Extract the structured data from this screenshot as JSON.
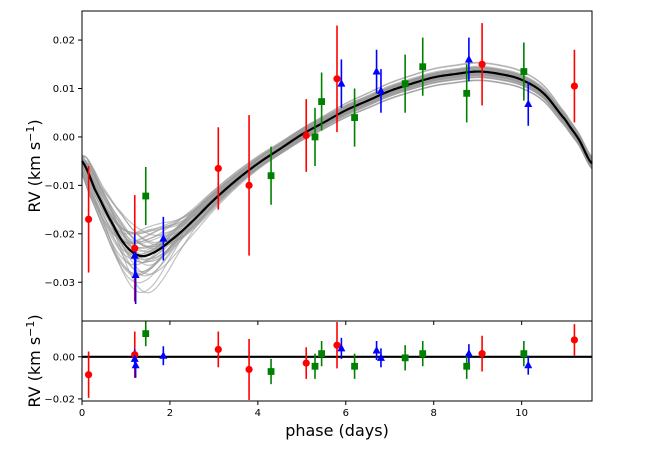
{
  "chart_data": {
    "type": "scatter",
    "x_axis": {
      "label": "phase (days)",
      "ticks": [
        "0",
        "2",
        "4",
        "6",
        "8",
        "10"
      ],
      "tick_values": [
        0,
        2,
        4,
        6,
        8,
        10
      ],
      "range": [
        0,
        11.6
      ]
    },
    "top_panel": {
      "ylabel_main": "RV (km s",
      "ylabel_sup": "−1",
      "ylabel_end": ")",
      "ylim": [
        -0.038,
        0.026
      ],
      "yticks": [
        "0.02",
        "0.01",
        "0.00",
        "−0.01",
        "−0.02",
        "−0.03"
      ],
      "ytick_values": [
        0.02,
        0.01,
        0.0,
        -0.01,
        -0.02,
        -0.03
      ],
      "model": {
        "color": "#000000",
        "points": [
          [
            0,
            -0.005
          ],
          [
            0.3,
            -0.011
          ],
          [
            0.7,
            -0.018
          ],
          [
            1.0,
            -0.0225
          ],
          [
            1.3,
            -0.0245
          ],
          [
            1.6,
            -0.024
          ],
          [
            2.0,
            -0.0215
          ],
          [
            2.5,
            -0.0175
          ],
          [
            3.0,
            -0.013
          ],
          [
            3.5,
            -0.009
          ],
          [
            4.0,
            -0.0055
          ],
          [
            4.5,
            -0.0025
          ],
          [
            5.0,
            0.0005
          ],
          [
            5.5,
            0.003
          ],
          [
            6.0,
            0.0055
          ],
          [
            6.5,
            0.0075
          ],
          [
            7.0,
            0.0095
          ],
          [
            7.5,
            0.011
          ],
          [
            8.0,
            0.0123
          ],
          [
            8.5,
            0.013
          ],
          [
            9.0,
            0.0135
          ],
          [
            9.5,
            0.013
          ],
          [
            10.0,
            0.0118
          ],
          [
            10.5,
            0.009
          ],
          [
            11.0,
            0.0035
          ],
          [
            11.3,
            -0.0005
          ],
          [
            11.6,
            -0.0055
          ]
        ]
      },
      "posterior_samples": {
        "color": "#999999",
        "description_count": 40
      },
      "series": [
        {
          "name": "red",
          "marker": "circle",
          "color": "#ff0000",
          "points": [
            [
              0.15,
              -0.017,
              0.011
            ],
            [
              1.2,
              -0.023,
              0.011
            ],
            [
              3.1,
              -0.0065,
              0.0085
            ],
            [
              3.8,
              -0.01,
              0.0145
            ],
            [
              5.1,
              0.0003,
              0.0075
            ],
            [
              5.8,
              0.012,
              0.011
            ],
            [
              9.1,
              0.015,
              0.0085
            ],
            [
              11.2,
              0.0105,
              0.0075
            ]
          ]
        },
        {
          "name": "green",
          "marker": "square",
          "color": "#008000",
          "points": [
            [
              1.45,
              -0.0122,
              0.006
            ],
            [
              4.3,
              -0.008,
              0.006
            ],
            [
              5.3,
              0.0,
              0.006
            ],
            [
              5.45,
              0.0073,
              0.006
            ],
            [
              6.2,
              0.004,
              0.006
            ],
            [
              7.35,
              0.011,
              0.006
            ],
            [
              7.75,
              0.0145,
              0.006
            ],
            [
              8.75,
              0.009,
              0.006
            ],
            [
              10.05,
              0.0135,
              0.006
            ]
          ]
        },
        {
          "name": "blue",
          "marker": "triangle",
          "color": "#0000ff",
          "points": [
            [
              1.2,
              -0.0245,
              0.0045
            ],
            [
              1.22,
              -0.0285,
              0.006
            ],
            [
              1.85,
              -0.021,
              0.0045
            ],
            [
              5.9,
              0.011,
              0.005
            ],
            [
              6.7,
              0.0135,
              0.0045
            ],
            [
              6.8,
              0.0095,
              0.0045
            ],
            [
              8.8,
              0.016,
              0.0045
            ],
            [
              10.15,
              0.0068,
              0.0045
            ]
          ]
        }
      ]
    },
    "bottom_panel": {
      "ylabel_main": "RV (km s",
      "ylabel_sup": "−1",
      "ylabel_end": ")",
      "ylim": [
        -0.021,
        0.017
      ],
      "yticks": [
        "0.00",
        "−0.02"
      ],
      "ytick_values": [
        0.0,
        -0.02
      ],
      "zero_line": 0.0,
      "series": [
        {
          "name": "red",
          "marker": "circle",
          "color": "#ff0000",
          "points": [
            [
              0.15,
              -0.0085,
              0.011
            ],
            [
              1.2,
              0.001,
              0.011
            ],
            [
              3.1,
              0.0035,
              0.0085
            ],
            [
              3.8,
              -0.006,
              0.0145
            ],
            [
              5.1,
              -0.003,
              0.0075
            ],
            [
              5.8,
              0.0055,
              0.011
            ],
            [
              9.1,
              0.0015,
              0.0085
            ],
            [
              11.2,
              0.008,
              0.0075
            ]
          ]
        },
        {
          "name": "green",
          "marker": "square",
          "color": "#008000",
          "points": [
            [
              1.45,
              0.011,
              0.006
            ],
            [
              4.3,
              -0.007,
              0.006
            ],
            [
              5.3,
              -0.0045,
              0.006
            ],
            [
              5.45,
              0.0015,
              0.006
            ],
            [
              6.2,
              -0.0045,
              0.006
            ],
            [
              7.35,
              -0.0005,
              0.006
            ],
            [
              7.75,
              0.0015,
              0.006
            ],
            [
              8.75,
              -0.0045,
              0.006
            ],
            [
              10.05,
              0.0015,
              0.006
            ]
          ]
        },
        {
          "name": "blue",
          "marker": "triangle",
          "color": "#0000ff",
          "points": [
            [
              1.2,
              -0.001,
              0.0045
            ],
            [
              1.22,
              -0.004,
              0.006
            ],
            [
              1.85,
              0.0005,
              0.0045
            ],
            [
              5.9,
              0.004,
              0.005
            ],
            [
              6.7,
              0.003,
              0.0045
            ],
            [
              6.8,
              -0.0005,
              0.0045
            ],
            [
              8.8,
              0.0015,
              0.0045
            ],
            [
              10.15,
              -0.004,
              0.0045
            ]
          ]
        }
      ]
    }
  }
}
